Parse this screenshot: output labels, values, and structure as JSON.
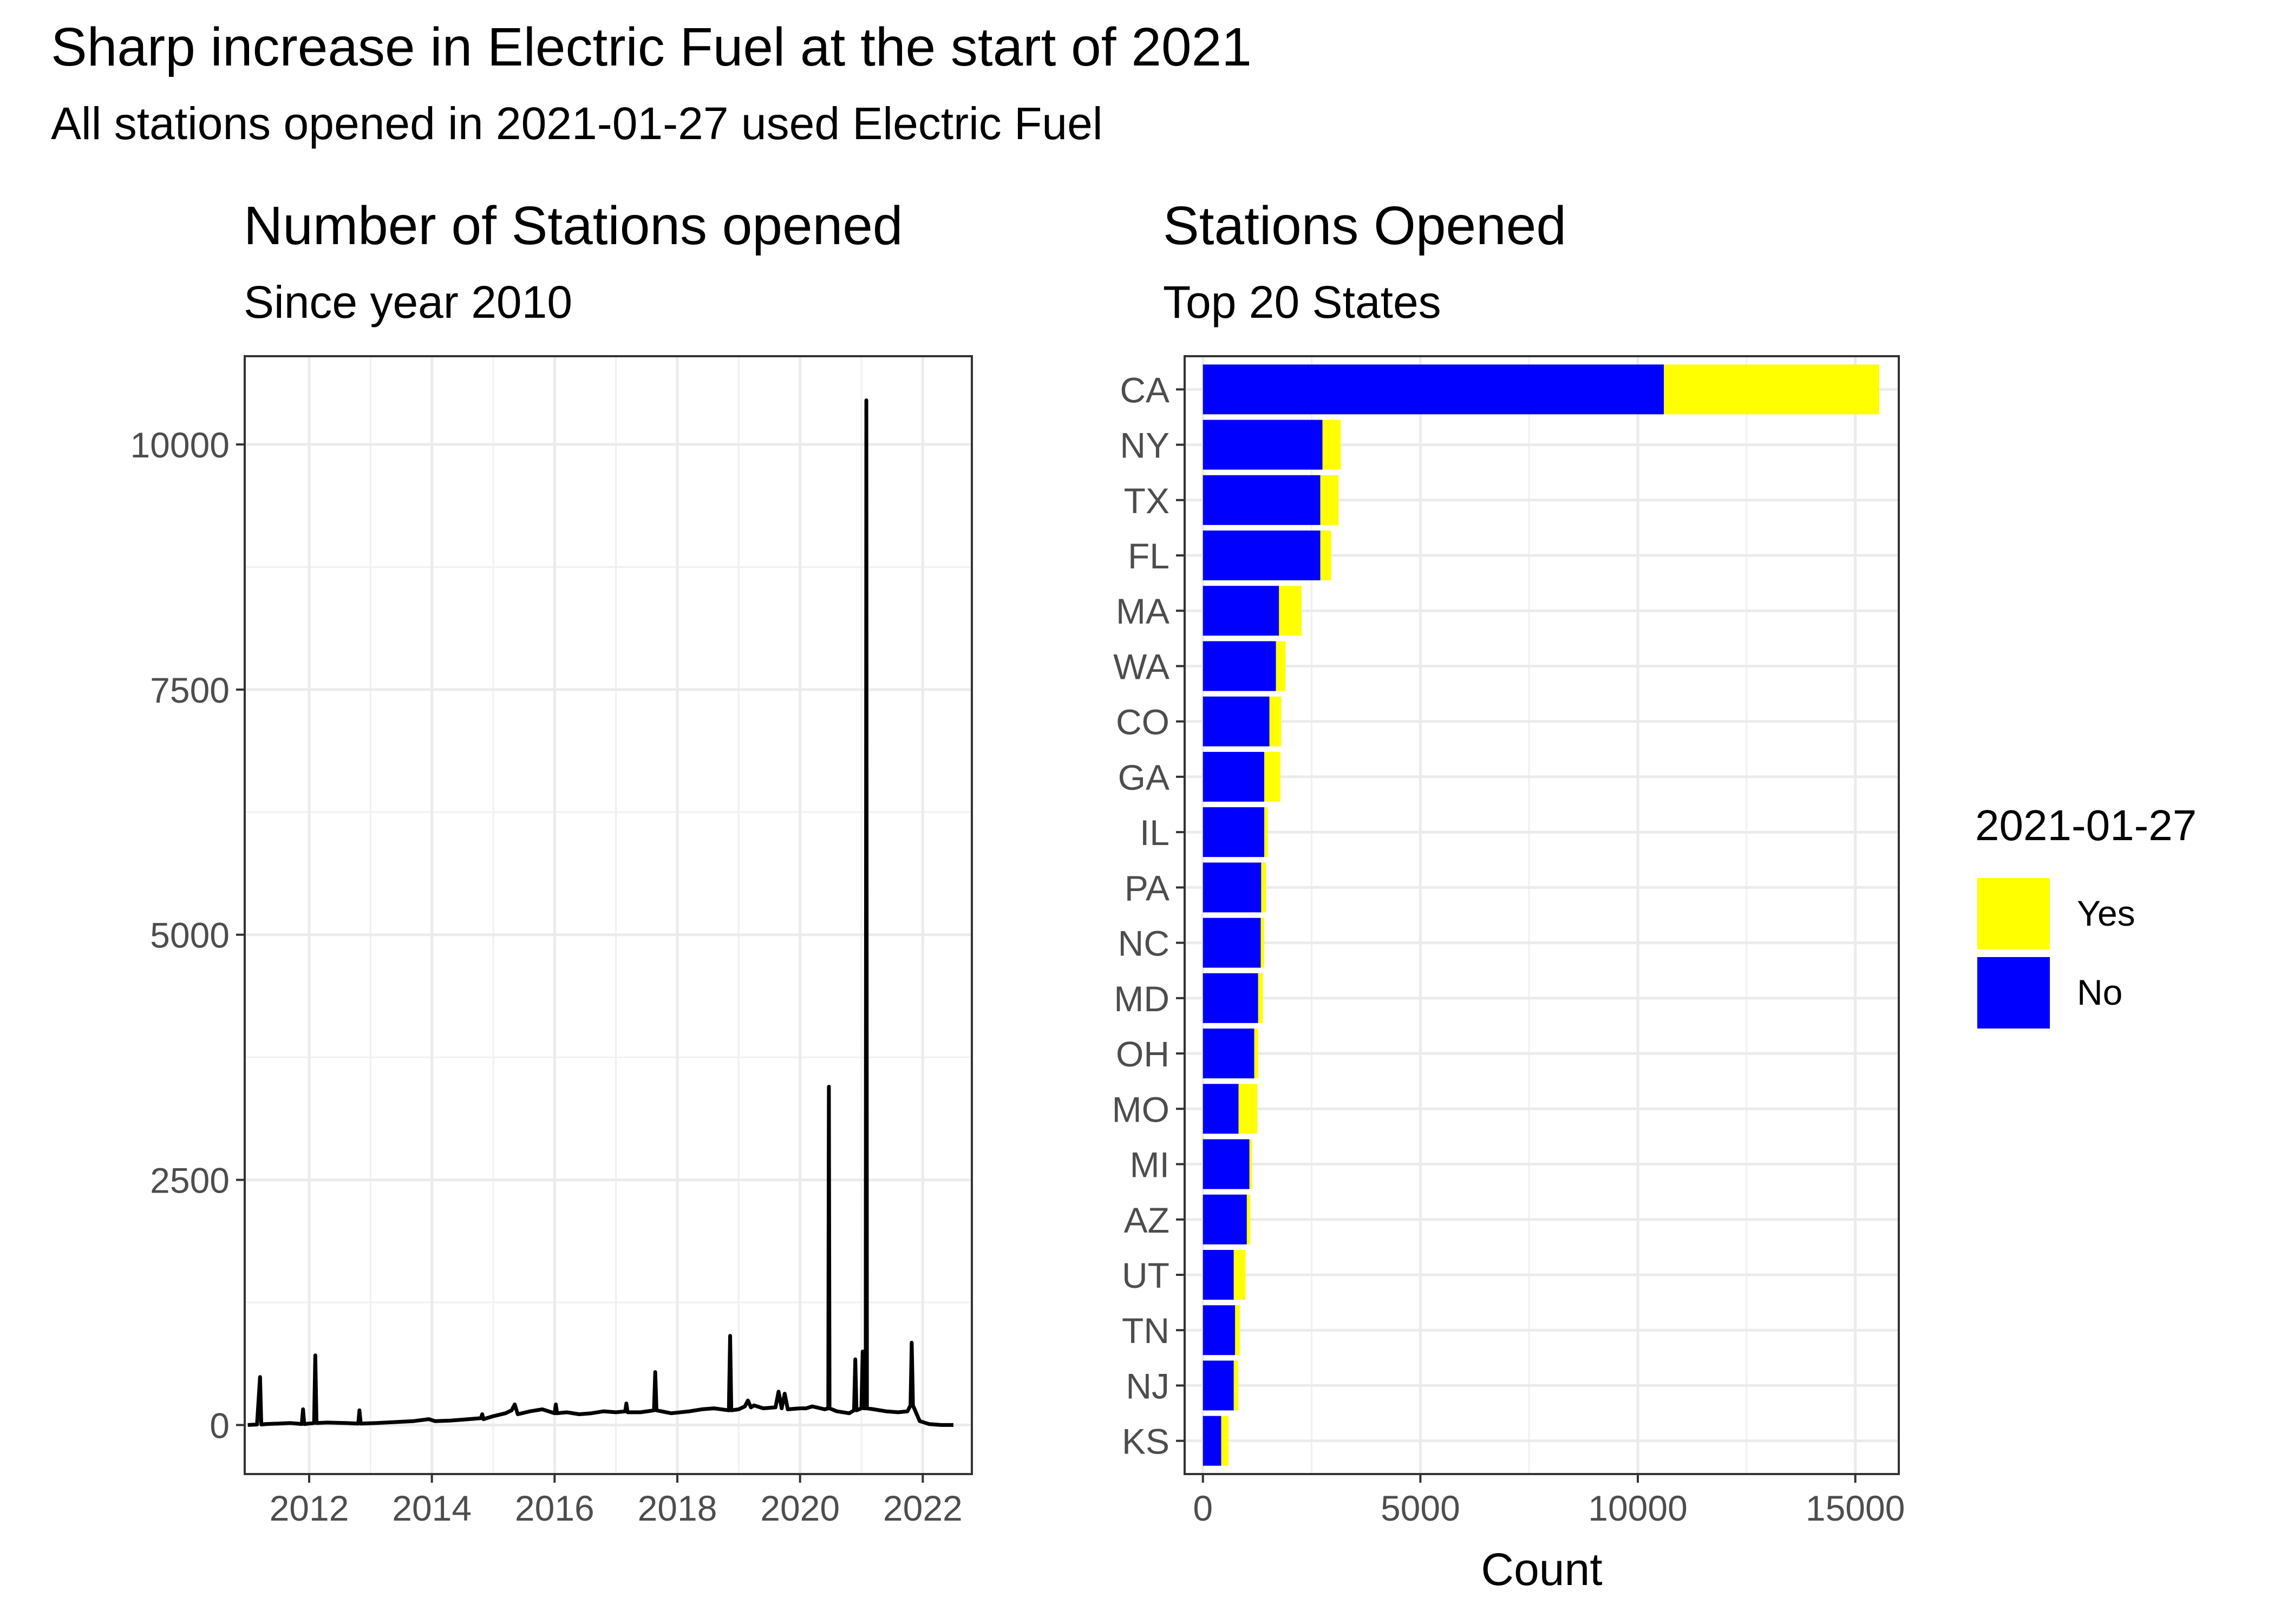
{
  "title": "Sharp increase in Electric Fuel at the start of 2021",
  "subtitle": "All stations opened in 2021-01-27 used Electric Fuel",
  "chart_data": [
    {
      "type": "line",
      "title": "Number of Stations opened",
      "subtitle": "Since year 2010",
      "xlabel": "",
      "ylabel": "",
      "xlim": [
        2010.95,
        2022.8
      ],
      "ylim": [
        -500,
        10900
      ],
      "x_ticks": [
        "2012",
        "2014",
        "2016",
        "2018",
        "2020",
        "2022"
      ],
      "y_ticks": [
        "0",
        "2500",
        "5000",
        "7500",
        "10000"
      ],
      "grid": true,
      "series": [
        {
          "x": [
            2011.0,
            2011.15,
            2011.2,
            2011.22,
            2011.3,
            2011.5,
            2011.7,
            2011.88,
            2011.9,
            2011.92,
            2012.0,
            2012.08,
            2012.1,
            2012.12,
            2012.3,
            2012.6,
            2012.8,
            2012.82,
            2012.84,
            2013.1,
            2013.4,
            2013.7,
            2013.95,
            2014.0,
            2014.05,
            2014.3,
            2014.6,
            2014.8,
            2014.82,
            2014.84,
            2015.0,
            2015.2,
            2015.3,
            2015.35,
            2015.4,
            2015.6,
            2015.8,
            2016.0,
            2016.02,
            2016.04,
            2016.2,
            2016.4,
            2016.6,
            2016.8,
            2017.0,
            2017.15,
            2017.17,
            2017.19,
            2017.4,
            2017.62,
            2017.64,
            2017.66,
            2017.9,
            2018.2,
            2018.4,
            2018.6,
            2018.84,
            2018.86,
            2018.88,
            2019.0,
            2019.1,
            2019.15,
            2019.2,
            2019.25,
            2019.4,
            2019.6,
            2019.65,
            2019.7,
            2019.75,
            2019.8,
            2020.0,
            2020.1,
            2020.2,
            2020.4,
            2020.46,
            2020.47,
            2020.48,
            2020.6,
            2020.8,
            2020.88,
            2020.9,
            2020.92,
            2021.0,
            2021.02,
            2021.04,
            2021.07,
            2021.08,
            2021.09,
            2021.2,
            2021.4,
            2021.6,
            2021.75,
            2021.8,
            2021.82,
            2021.84,
            2021.95,
            2022.1,
            2022.3,
            2022.5
          ],
          "y": [
            0,
            5,
            490,
            5,
            10,
            15,
            20,
            10,
            160,
            10,
            15,
            20,
            710,
            20,
            25,
            20,
            15,
            150,
            15,
            20,
            30,
            40,
            60,
            50,
            40,
            45,
            60,
            70,
            110,
            60,
            90,
            120,
            150,
            210,
            110,
            140,
            160,
            120,
            210,
            120,
            130,
            110,
            120,
            140,
            130,
            140,
            220,
            130,
            130,
            150,
            540,
            150,
            120,
            140,
            160,
            170,
            150,
            910,
            150,
            160,
            190,
            250,
            180,
            200,
            170,
            180,
            340,
            170,
            320,
            160,
            170,
            170,
            190,
            160,
            170,
            3450,
            170,
            140,
            120,
            150,
            670,
            150,
            170,
            750,
            170,
            170,
            10450,
            170,
            160,
            140,
            130,
            140,
            200,
            840,
            200,
            40,
            10,
            0,
            0
          ]
        }
      ]
    },
    {
      "type": "bar",
      "orientation": "horizontal",
      "stacked": true,
      "title": "Stations Opened",
      "subtitle": "Top 20 States",
      "xlabel": "Count",
      "ylabel": "",
      "xlim": [
        -420,
        16000
      ],
      "x_ticks": [
        "0",
        "5000",
        "10000",
        "15000"
      ],
      "grid": true,
      "legend": {
        "title": "2021-01-27",
        "position": "right"
      },
      "categories": [
        "CA",
        "NY",
        "TX",
        "FL",
        "MA",
        "WA",
        "CO",
        "GA",
        "IL",
        "PA",
        "NC",
        "MD",
        "OH",
        "MO",
        "MI",
        "AZ",
        "UT",
        "TN",
        "NJ",
        "KS"
      ],
      "series": [
        {
          "name": "No",
          "color": "#0000ff",
          "values": [
            10600,
            2750,
            2700,
            2700,
            1750,
            1680,
            1530,
            1410,
            1410,
            1340,
            1330,
            1270,
            1180,
            820,
            1070,
            1010,
            710,
            740,
            710,
            420
          ]
        },
        {
          "name": "Yes",
          "color": "#ffff00",
          "values": [
            4950,
            420,
            420,
            250,
            520,
            220,
            270,
            370,
            80,
            110,
            80,
            110,
            90,
            430,
            60,
            80,
            270,
            110,
            100,
            170
          ]
        }
      ]
    }
  ]
}
